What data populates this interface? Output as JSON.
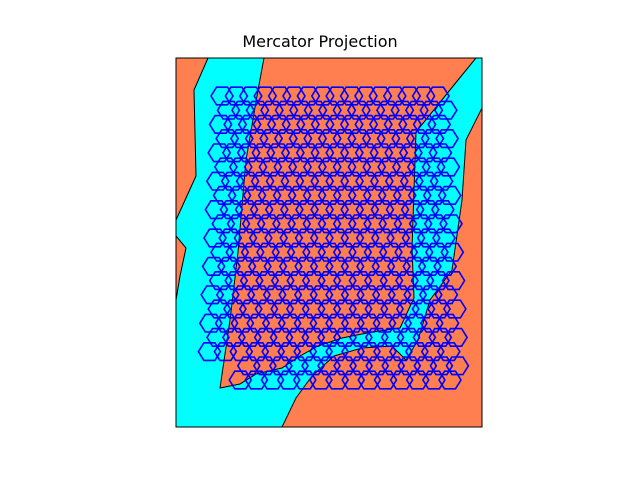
{
  "map": {
    "title": "Mercator Projection",
    "projection": "Mercator",
    "land_color": "#ff7f50",
    "water_color": "#00ffff",
    "coastline_color": "#000000",
    "frame_color": "#000000",
    "hexagon_outline_color": "#0000ff",
    "hexagon_fill": "none",
    "hexagon_grid": {
      "columns": 16,
      "rows": 21
    }
  }
}
